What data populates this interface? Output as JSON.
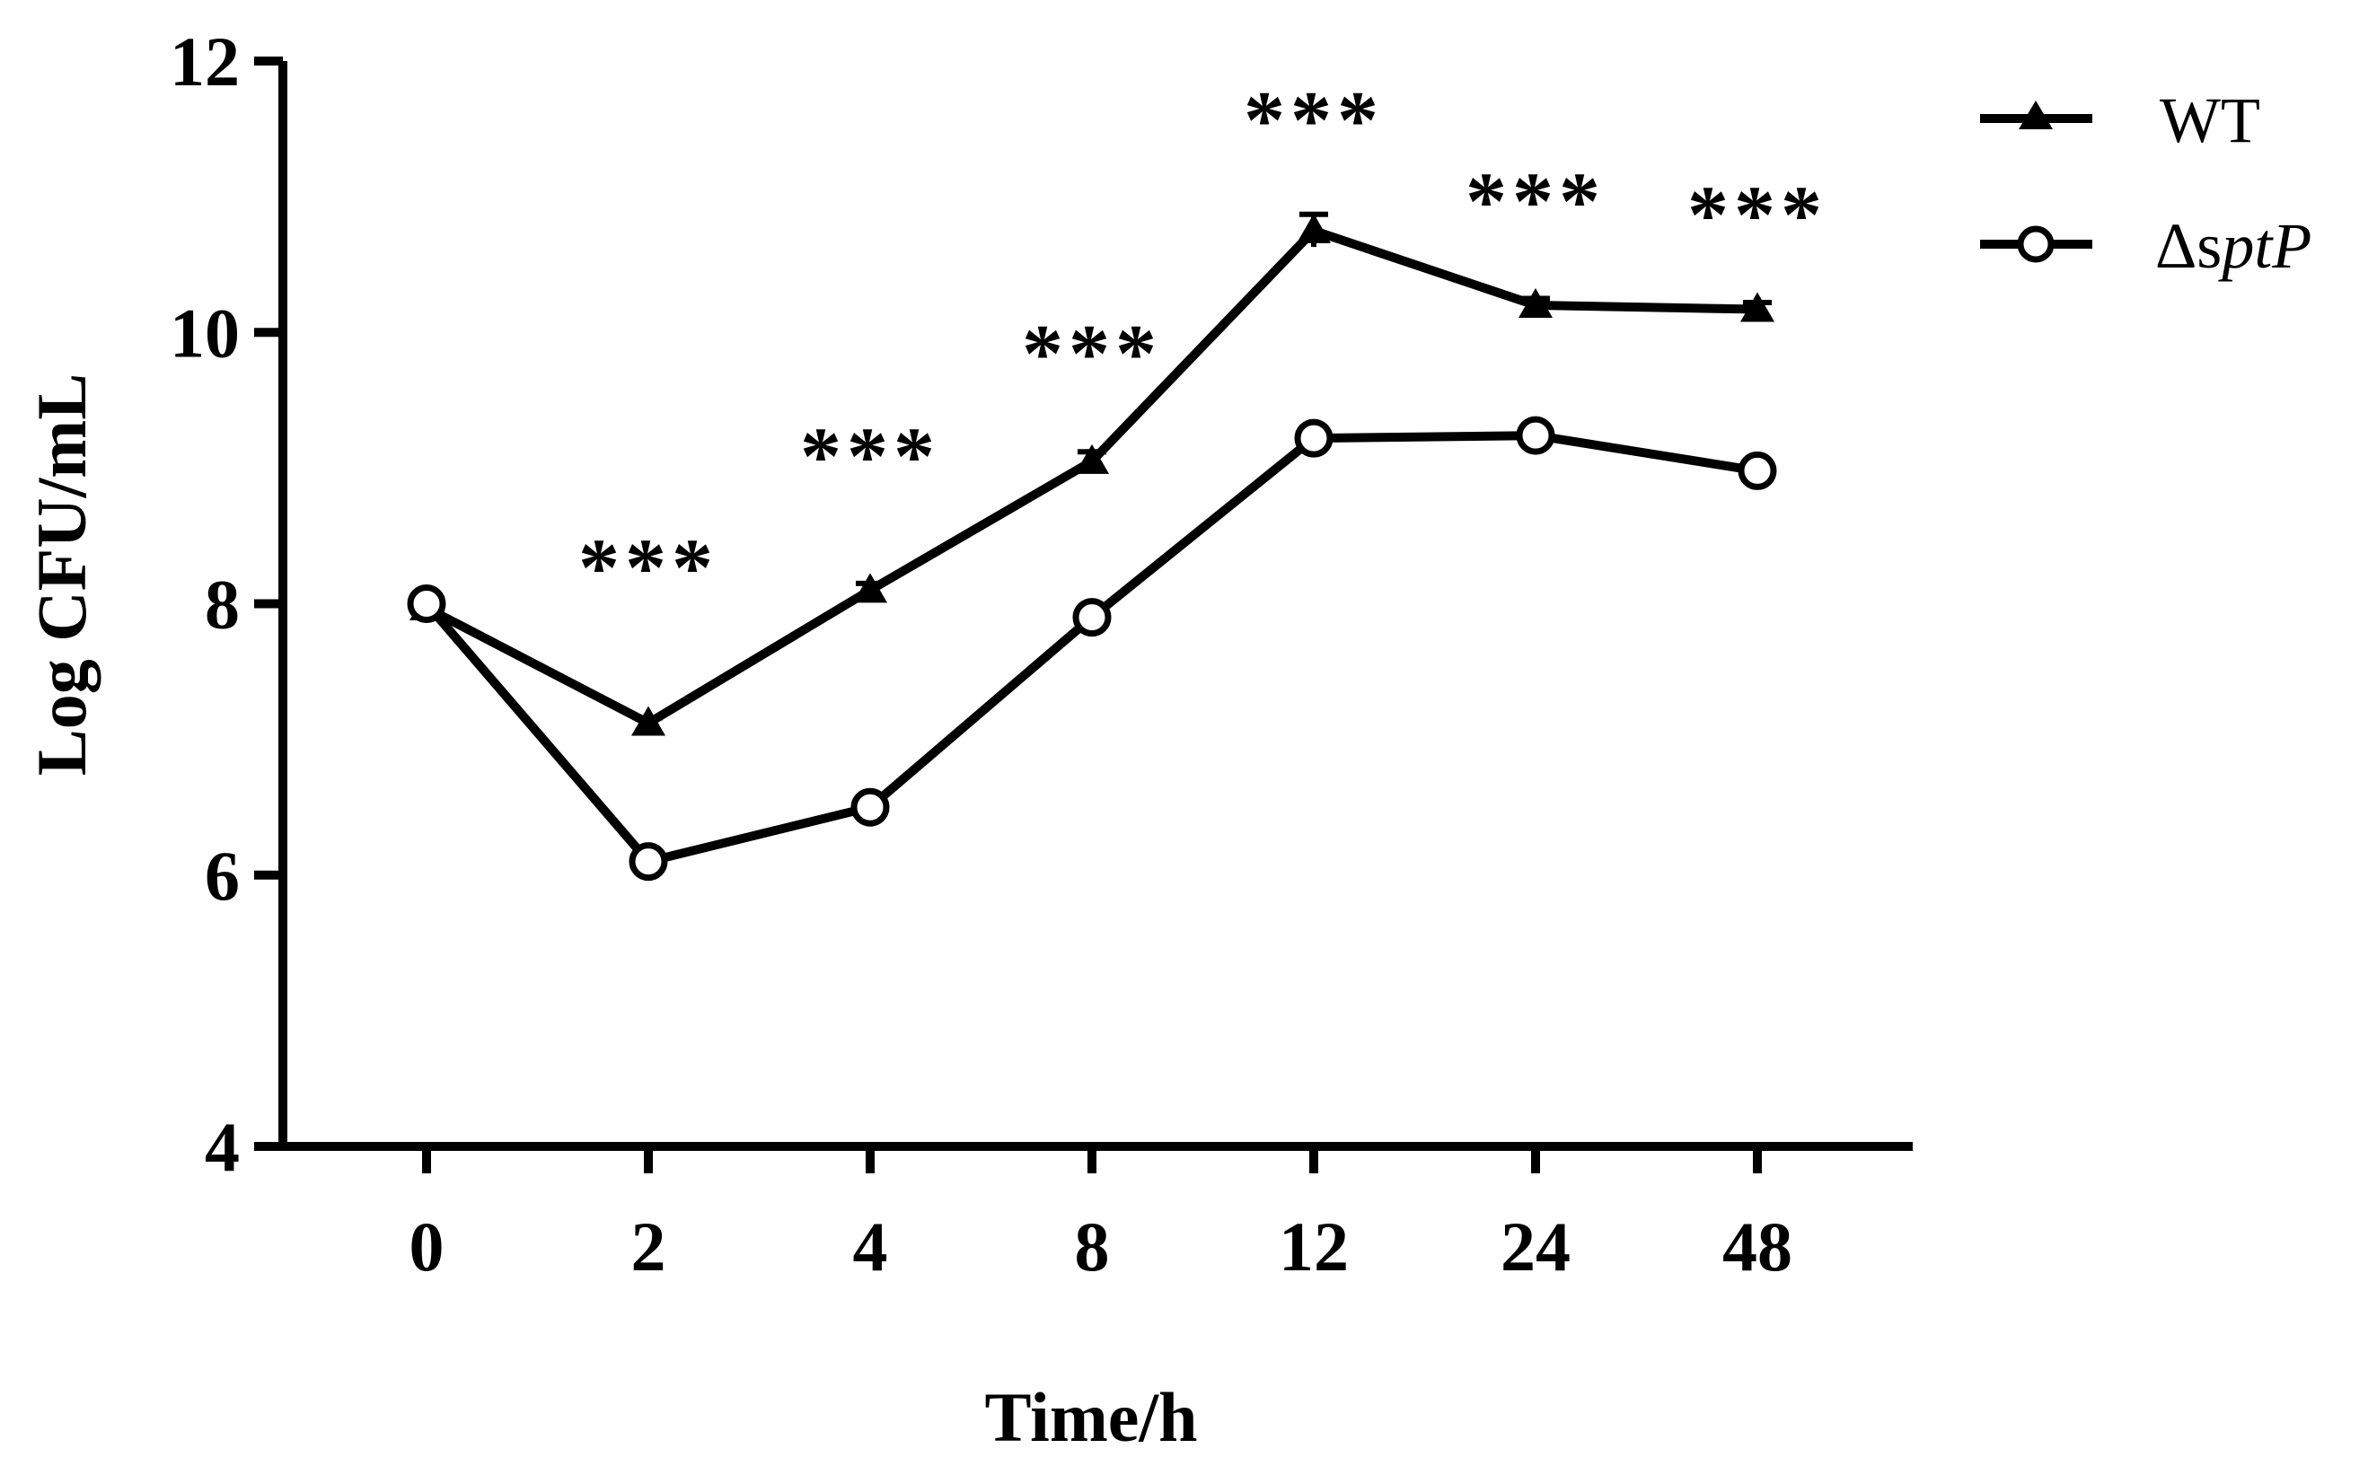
{
  "chart_data": {
    "type": "line",
    "title": "",
    "xlabel": "Time/h",
    "ylabel": "Log CFU/mL",
    "categories": [
      "0",
      "2",
      "4",
      "8",
      "12",
      "24",
      "48"
    ],
    "ylim": [
      4,
      12
    ],
    "yticks": [
      4,
      6,
      8,
      10,
      12
    ],
    "grid": false,
    "legend_position": "top-right",
    "series": [
      {
        "name": "WT",
        "marker": "triangle",
        "values": [
          7.97,
          7.12,
          8.1,
          9.05,
          10.75,
          10.2,
          10.17
        ],
        "errors": [
          0.03,
          0.04,
          0.05,
          0.07,
          0.12,
          0.05,
          0.05
        ]
      },
      {
        "name": "ΔsptP",
        "legend_prefix": "Δs",
        "legend_italic": "ptP",
        "marker": "circle-open",
        "values": [
          8.0,
          6.1,
          6.5,
          7.9,
          9.22,
          9.24,
          8.98
        ],
        "errors": [
          0.02,
          0.04,
          0.03,
          0.04,
          0.03,
          0.03,
          0.03
        ]
      }
    ],
    "annotations": [
      {
        "category": "2",
        "text": "***",
        "y": 8.3
      },
      {
        "category": "4",
        "text": "***",
        "y": 9.12
      },
      {
        "category": "8",
        "text": "***",
        "y": 9.88
      },
      {
        "category": "12",
        "text": "***",
        "y": 11.6
      },
      {
        "category": "24",
        "text": "***",
        "y": 11.0
      },
      {
        "category": "48",
        "text": "***",
        "y": 10.9
      }
    ]
  },
  "colors": {
    "line": "#000000",
    "background": "#ffffff"
  }
}
